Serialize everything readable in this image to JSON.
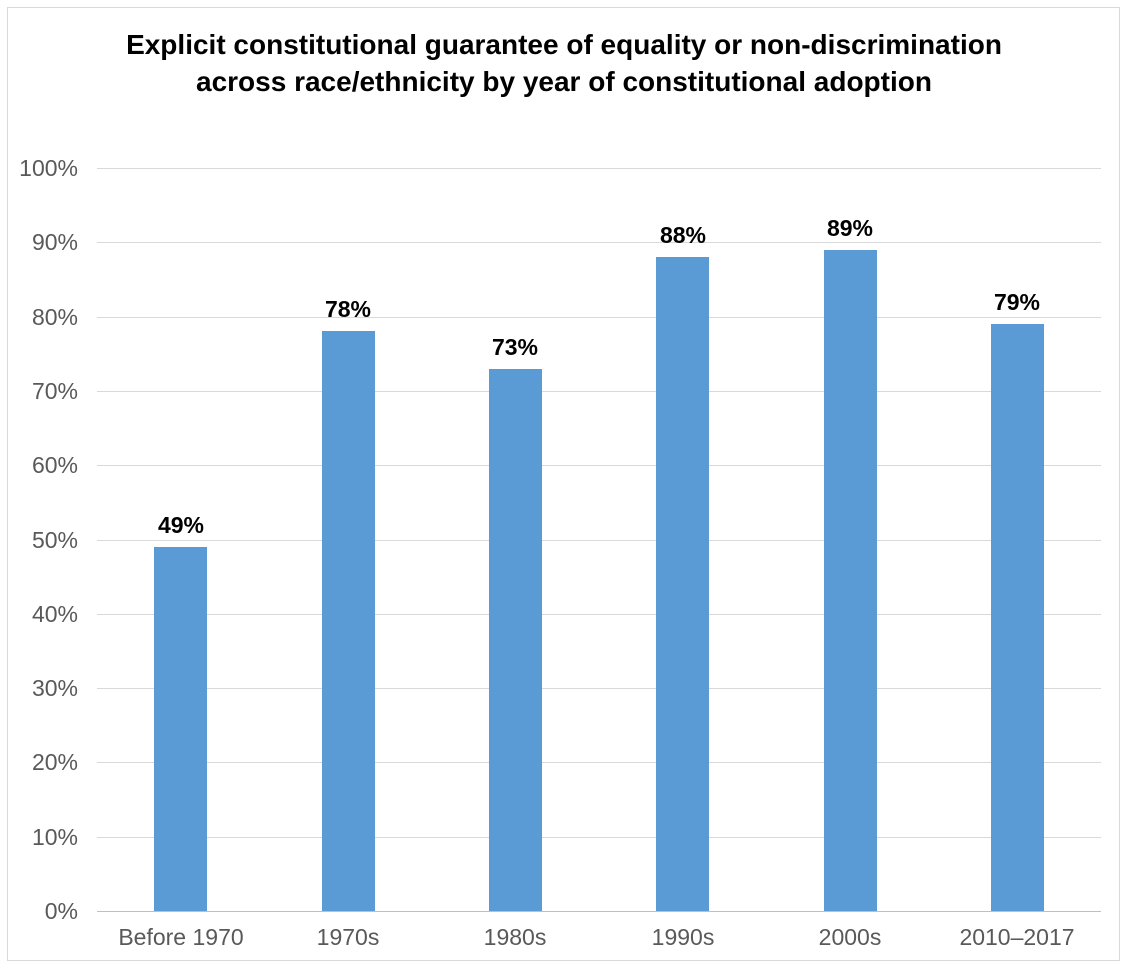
{
  "chart_data": {
    "type": "bar",
    "title": "Explicit constitutional guarantee of equality or non-discrimination across race/ethnicity by year of constitutional adoption",
    "categories": [
      "Before 1970",
      "1970s",
      "1980s",
      "1990s",
      "2000s",
      "2010–2017"
    ],
    "values": [
      49,
      78,
      73,
      88,
      89,
      79
    ],
    "data_labels": [
      "49%",
      "78%",
      "73%",
      "88%",
      "89%",
      "79%"
    ],
    "xlabel": "",
    "ylabel": "",
    "ylim": [
      0,
      100
    ],
    "ytick_step": 10,
    "ytick_labels": [
      "0%",
      "10%",
      "20%",
      "30%",
      "40%",
      "50%",
      "60%",
      "70%",
      "80%",
      "90%",
      "100%"
    ],
    "grid": true,
    "legend": "none",
    "colors": {
      "bar": "#5b9bd5",
      "gridline": "#d9d9d9",
      "axis_line": "#bfbfbf",
      "tick_label": "#595959",
      "data_label": "#000000",
      "title": "#000000",
      "frame_border": "#d9d9d9",
      "background": "#ffffff"
    }
  }
}
